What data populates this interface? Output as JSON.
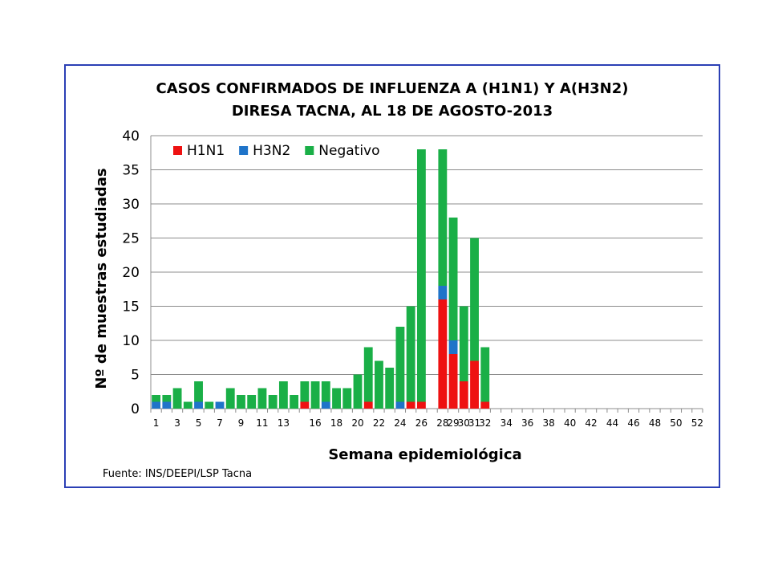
{
  "chart_data": {
    "type": "bar",
    "stacked": true,
    "title": "CASOS CONFIRMADOS DE INFLUENZA A (H1N1)  Y A(H3N2)",
    "subtitle": "DIRESA TACNA, AL 18  DE AGOSTO-2013",
    "xlabel": "Semana epidemiológica",
    "ylabel": "Nº  de muestras estudiadas",
    "source": "Fuente: INS/DEEPI/LSP Tacna",
    "ylim": [
      0,
      40
    ],
    "yticks": [
      "0",
      "5",
      "10",
      "15",
      "20",
      "25",
      "30",
      "35",
      "40"
    ],
    "grid": true,
    "legend_position": "top-left",
    "categories": [
      1,
      2,
      3,
      4,
      5,
      6,
      7,
      8,
      9,
      10,
      11,
      12,
      13,
      14,
      15,
      16,
      17,
      18,
      19,
      20,
      21,
      22,
      23,
      24,
      25,
      26,
      27,
      28,
      29,
      30,
      31,
      32,
      33,
      34,
      35,
      36,
      37,
      38,
      39,
      40,
      41,
      42,
      43,
      44,
      45,
      46,
      47,
      48,
      49,
      50,
      51,
      52
    ],
    "xtick_labels": [
      "1",
      "3",
      "5",
      "7",
      "9",
      "11",
      "13",
      "16",
      "18",
      "20",
      "22",
      "24",
      "26",
      "28",
      "29",
      "30",
      "31",
      "32",
      "34",
      "36",
      "38",
      "40",
      "42",
      "44",
      "46",
      "48",
      "50",
      "52"
    ],
    "series": [
      {
        "name": "H1N1",
        "color": "#ee1111",
        "values": [
          0,
          0,
          0,
          0,
          0,
          0,
          0,
          0,
          0,
          0,
          0,
          0,
          0,
          0,
          1,
          0,
          0,
          0,
          0,
          0,
          1,
          0,
          0,
          0,
          1,
          1,
          0,
          16,
          8,
          4,
          7,
          1,
          0,
          0,
          0,
          0,
          0,
          0,
          0,
          0,
          0,
          0,
          0,
          0,
          0,
          0,
          0,
          0,
          0,
          0,
          0,
          0
        ]
      },
      {
        "name": "H3N2",
        "color": "#1f74c9",
        "values": [
          1,
          1,
          0,
          0,
          1,
          0,
          1,
          0,
          0,
          0,
          0,
          0,
          0,
          0,
          0,
          0,
          1,
          0,
          0,
          0,
          0,
          0,
          0,
          1,
          0,
          0,
          0,
          2,
          2,
          0,
          0,
          0,
          0,
          0,
          0,
          0,
          0,
          0,
          0,
          0,
          0,
          0,
          0,
          0,
          0,
          0,
          0,
          0,
          0,
          0,
          0,
          0
        ]
      },
      {
        "name": "Negativo",
        "color": "#1aaf47",
        "values": [
          1,
          1,
          3,
          1,
          3,
          1,
          0,
          3,
          2,
          2,
          3,
          2,
          4,
          2,
          3,
          4,
          3,
          3,
          3,
          5,
          8,
          7,
          6,
          11,
          14,
          37,
          0,
          20,
          18,
          11,
          18,
          8,
          0,
          0,
          0,
          0,
          0,
          0,
          0,
          0,
          0,
          0,
          0,
          0,
          0,
          0,
          0,
          0,
          0,
          0,
          0,
          0
        ]
      }
    ]
  }
}
